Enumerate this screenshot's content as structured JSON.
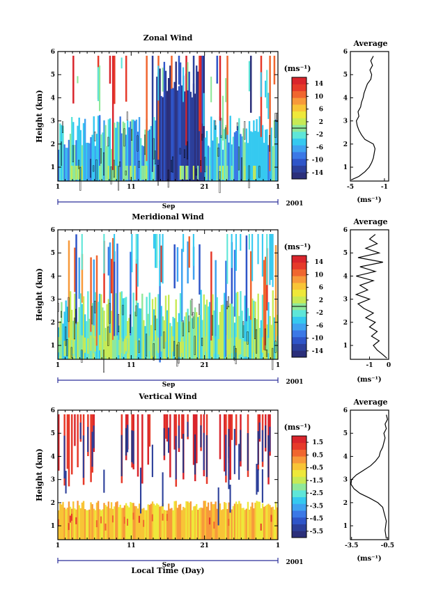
{
  "figure": {
    "xaxis_title": "Local Time (Day)",
    "month_label": "Sep",
    "year_label": "2001",
    "x_ticks": [
      "1",
      "11",
      "21",
      "1"
    ]
  },
  "colors": {
    "palette": [
      "#2b2f7a",
      "#2c3f9a",
      "#2f55c8",
      "#3b78e6",
      "#3fa2f0",
      "#35c9f0",
      "#5ee6d8",
      "#8fe89a",
      "#c7ea55",
      "#eee83a",
      "#f8c436",
      "#f7993a",
      "#f0662f",
      "#e63a2a",
      "#d9252c"
    ],
    "contour": "#000000"
  },
  "chart_data": [
    {
      "type": "heatmap",
      "title": "Zonal Wind",
      "ylabel": "Height (km)",
      "y_ticks": [
        "1",
        "2",
        "3",
        "4",
        "5",
        "6"
      ],
      "ylim": [
        0.4,
        6
      ],
      "colorbar_unit": "(ms⁻¹)",
      "colorbar_ticks": [
        "14",
        "10",
        "6",
        "2",
        "-2",
        "-6",
        "-10",
        "-14"
      ],
      "colorbar_range": [
        -16,
        16
      ],
      "profile": {
        "title": "Average",
        "xlabel": "(ms⁻¹)",
        "x_ticks": [
          "-5",
          "-1"
        ],
        "xlim": [
          -5,
          -0.5
        ],
        "points": [
          [
            -4.9,
            0.45
          ],
          [
            -4.0,
            0.6
          ],
          [
            -3.3,
            0.8
          ],
          [
            -2.8,
            1.0
          ],
          [
            -2.5,
            1.2
          ],
          [
            -2.3,
            1.4
          ],
          [
            -2.2,
            1.6
          ],
          [
            -2.1,
            1.8
          ],
          [
            -2.3,
            2.0
          ],
          [
            -3.3,
            2.2
          ],
          [
            -3.7,
            2.4
          ],
          [
            -4.0,
            2.6
          ],
          [
            -4.2,
            2.8
          ],
          [
            -4.3,
            3.0
          ],
          [
            -4.0,
            3.2
          ],
          [
            -4.1,
            3.4
          ],
          [
            -3.8,
            3.6
          ],
          [
            -3.7,
            3.8
          ],
          [
            -3.5,
            4.0
          ],
          [
            -3.4,
            4.2
          ],
          [
            -3.2,
            4.4
          ],
          [
            -3.0,
            4.6
          ],
          [
            -2.6,
            4.8
          ],
          [
            -2.5,
            5.0
          ],
          [
            -2.7,
            5.2
          ],
          [
            -2.4,
            5.4
          ],
          [
            -2.6,
            5.6
          ],
          [
            -2.3,
            5.8
          ]
        ]
      }
    },
    {
      "type": "heatmap",
      "title": "Meridional Wind",
      "ylabel": "Height (km)",
      "y_ticks": [
        "1",
        "2",
        "3",
        "4",
        "5",
        "6"
      ],
      "ylim": [
        0.4,
        6
      ],
      "colorbar_unit": "(ms⁻¹)",
      "colorbar_ticks": [
        "14",
        "10",
        "6",
        "2",
        "-2",
        "-6",
        "-10",
        "-14"
      ],
      "colorbar_range": [
        -16,
        16
      ],
      "profile": {
        "title": "Average",
        "xlabel": "(ms⁻¹)",
        "x_ticks": [
          "-1",
          "0"
        ],
        "xlim": [
          -2,
          0
        ],
        "points": [
          [
            -0.1,
            0.45
          ],
          [
            -0.3,
            0.6
          ],
          [
            -0.6,
            0.8
          ],
          [
            -0.8,
            1.0
          ],
          [
            -0.5,
            1.2
          ],
          [
            -0.9,
            1.4
          ],
          [
            -0.6,
            1.6
          ],
          [
            -1.0,
            1.8
          ],
          [
            -0.7,
            2.0
          ],
          [
            -1.2,
            2.2
          ],
          [
            -0.8,
            2.4
          ],
          [
            -1.3,
            2.6
          ],
          [
            -1.6,
            2.8
          ],
          [
            -1.0,
            3.0
          ],
          [
            -1.7,
            3.2
          ],
          [
            -1.1,
            3.4
          ],
          [
            -1.5,
            3.6
          ],
          [
            -0.8,
            3.8
          ],
          [
            -1.7,
            4.0
          ],
          [
            -0.7,
            4.2
          ],
          [
            -1.5,
            4.4
          ],
          [
            -0.3,
            4.6
          ],
          [
            -1.6,
            4.8
          ],
          [
            -0.5,
            5.0
          ],
          [
            -1.2,
            5.2
          ],
          [
            -0.6,
            5.4
          ],
          [
            -1.0,
            5.6
          ],
          [
            -0.7,
            5.8
          ]
        ]
      }
    },
    {
      "type": "heatmap",
      "title": "Vertical Wind",
      "ylabel": "Height (km)",
      "y_ticks": [
        "1",
        "2",
        "3",
        "4",
        "5",
        "6"
      ],
      "ylim": [
        0.4,
        6
      ],
      "colorbar_unit": "(ms⁻¹)",
      "colorbar_ticks": [
        "1.5",
        "0.5",
        "-0.5",
        "-1.5",
        "-2.5",
        "-3.5",
        "-4.5",
        "-5.5"
      ],
      "colorbar_range": [
        -6,
        2
      ],
      "profile": {
        "title": "Average",
        "xlabel": "(ms⁻¹)",
        "x_ticks": [
          "-3.5",
          "-0.5"
        ],
        "xlim": [
          -3.6,
          -0.4
        ],
        "points": [
          [
            -0.6,
            0.45
          ],
          [
            -0.7,
            0.8
          ],
          [
            -0.6,
            1.2
          ],
          [
            -0.8,
            1.6
          ],
          [
            -0.9,
            1.8
          ],
          [
            -1.3,
            2.0
          ],
          [
            -2.0,
            2.2
          ],
          [
            -2.8,
            2.4
          ],
          [
            -3.3,
            2.6
          ],
          [
            -3.55,
            2.8
          ],
          [
            -3.5,
            3.0
          ],
          [
            -3.1,
            3.2
          ],
          [
            -2.5,
            3.4
          ],
          [
            -1.9,
            3.6
          ],
          [
            -1.5,
            3.8
          ],
          [
            -1.2,
            4.0
          ],
          [
            -1.1,
            4.2
          ],
          [
            -0.9,
            4.4
          ],
          [
            -0.8,
            4.6
          ],
          [
            -0.7,
            4.8
          ],
          [
            -0.8,
            5.0
          ],
          [
            -0.6,
            5.2
          ],
          [
            -0.7,
            5.4
          ],
          [
            -0.5,
            5.6
          ],
          [
            -0.6,
            5.8
          ]
        ]
      }
    }
  ]
}
